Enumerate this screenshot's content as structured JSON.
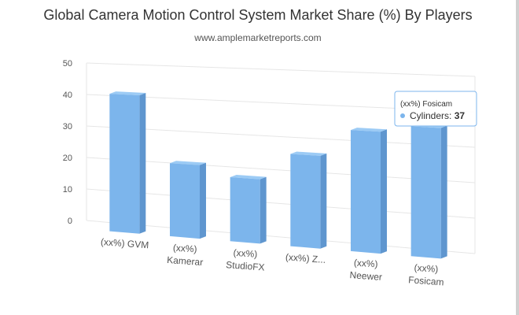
{
  "chart_data": {
    "type": "bar",
    "title": "Global Camera Motion Control System Market Share (%) By Players",
    "subtitle": "www.amplemarketreports.com",
    "categories": [
      [
        "(xx%) GVM"
      ],
      [
        "(xx%)",
        "Kamerar"
      ],
      [
        "(xx%)",
        "StudioFX"
      ],
      [
        "(xx%) Z..."
      ],
      [
        "(xx%)",
        "Neewer"
      ],
      [
        "(xx%)",
        "Fosicam"
      ]
    ],
    "series": [
      {
        "values": [
          42,
          22,
          19,
          27,
          35,
          37
        ]
      }
    ],
    "ylim": [
      0,
      50
    ],
    "yticks": [
      0,
      10,
      20,
      30,
      40,
      50
    ],
    "grid": true,
    "style": "3d-column",
    "colors": {
      "bar": "#7cb5ec",
      "bar_side": "#5f96cf",
      "bar_top": "#9ccbf5",
      "grid": "#e6e6e6"
    },
    "tooltip": {
      "category": "(xx%) Fosicam",
      "series_name": "Cylinders",
      "value": "37"
    }
  }
}
